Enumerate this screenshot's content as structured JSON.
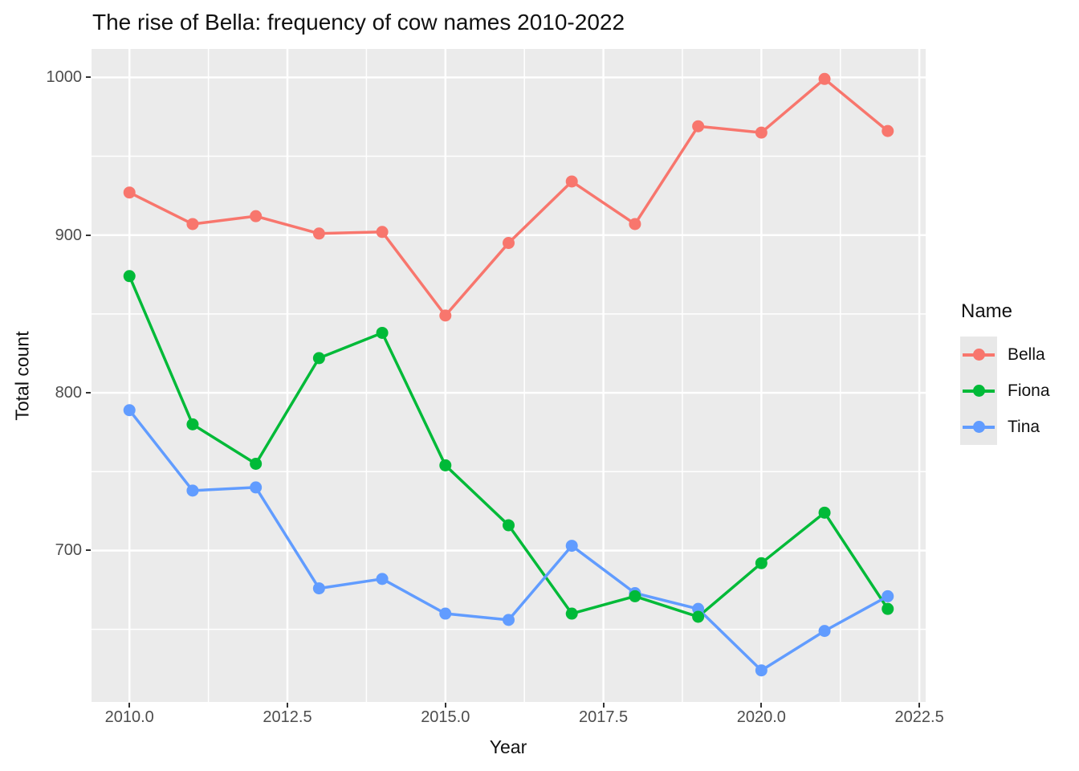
{
  "chart_data": {
    "type": "line",
    "title": "The rise of Bella: frequency of cow names 2010-2022",
    "xlabel": "Year",
    "ylabel": "Total count",
    "legend": {
      "title": "Name",
      "position": "right"
    },
    "x": [
      2010,
      2011,
      2012,
      2013,
      2014,
      2015,
      2016,
      2017,
      2018,
      2019,
      2020,
      2021,
      2022
    ],
    "series": [
      {
        "name": "Bella",
        "color": "#F8766D",
        "values": [
          927,
          907,
          912,
          901,
          902,
          849,
          895,
          934,
          907,
          969,
          965,
          999,
          966
        ]
      },
      {
        "name": "Fiona",
        "color": "#00BA38",
        "values": [
          874,
          780,
          755,
          822,
          838,
          754,
          716,
          660,
          671,
          658,
          692,
          724,
          663
        ]
      },
      {
        "name": "Tina",
        "color": "#619CFF",
        "values": [
          789,
          738,
          740,
          676,
          682,
          660,
          656,
          703,
          673,
          663,
          624,
          649,
          671
        ]
      }
    ],
    "xlim": [
      2009.4,
      2022.6
    ],
    "ylim": [
      604,
      1018
    ],
    "x_major_ticks": [
      2010,
      2012.5,
      2015,
      2017.5,
      2020,
      2022.5
    ],
    "x_tick_labels": [
      "2010.0",
      "2012.5",
      "2015.0",
      "2017.5",
      "2020.0",
      "2022.5"
    ],
    "x_minor_ticks": [
      2011.25,
      2013.75,
      2016.25,
      2018.75,
      2021.25
    ],
    "y_major_ticks": [
      700,
      800,
      900,
      1000
    ],
    "y_tick_labels": [
      "700",
      "800",
      "900",
      "1000"
    ],
    "y_minor_ticks": [
      650,
      750,
      850,
      950
    ],
    "grid": true,
    "panel_bg": "#EBEBEB",
    "grid_color": "#FFFFFF",
    "tick_label_color": "#4D4D4D",
    "point_radius": 7.5,
    "line_width": 3.5
  }
}
